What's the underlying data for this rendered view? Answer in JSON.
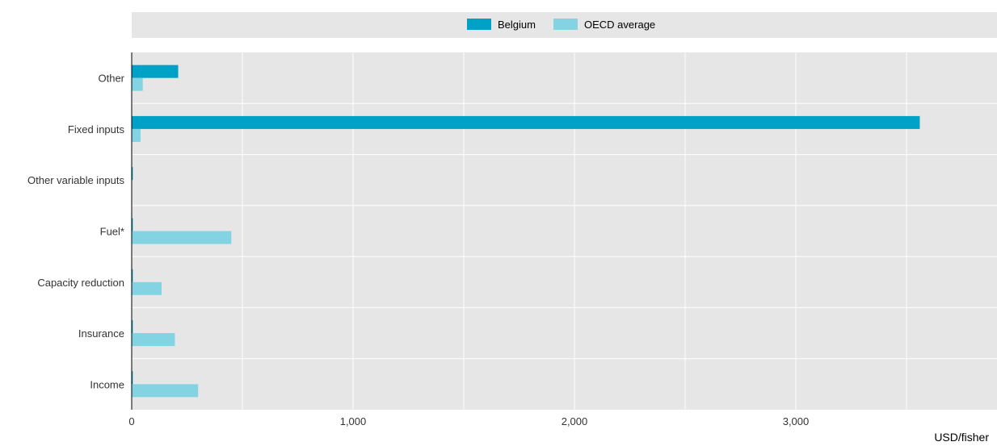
{
  "chart_data": {
    "type": "bar",
    "orientation": "horizontal",
    "categories": [
      "Other",
      "Fixed inputs",
      "Other variable inputs",
      "Fuel*",
      "Capacity reduction",
      "Insurance",
      "Income"
    ],
    "series": [
      {
        "name": "Belgium",
        "color": "#00a1c7",
        "values": [
          210,
          3560,
          5,
          5,
          5,
          5,
          5
        ]
      },
      {
        "name": "OECD average",
        "color": "#83d3e3",
        "values": [
          50,
          40,
          0,
          450,
          135,
          195,
          300
        ]
      }
    ],
    "x_ticks": [
      0,
      1000,
      2000,
      3000
    ],
    "x_tick_labels": [
      "0",
      "1,000",
      "2,000",
      "3,000"
    ],
    "xlim": [
      0,
      3860
    ],
    "unit_label": "USD/fisher",
    "grid": true,
    "legend_position": "top"
  }
}
